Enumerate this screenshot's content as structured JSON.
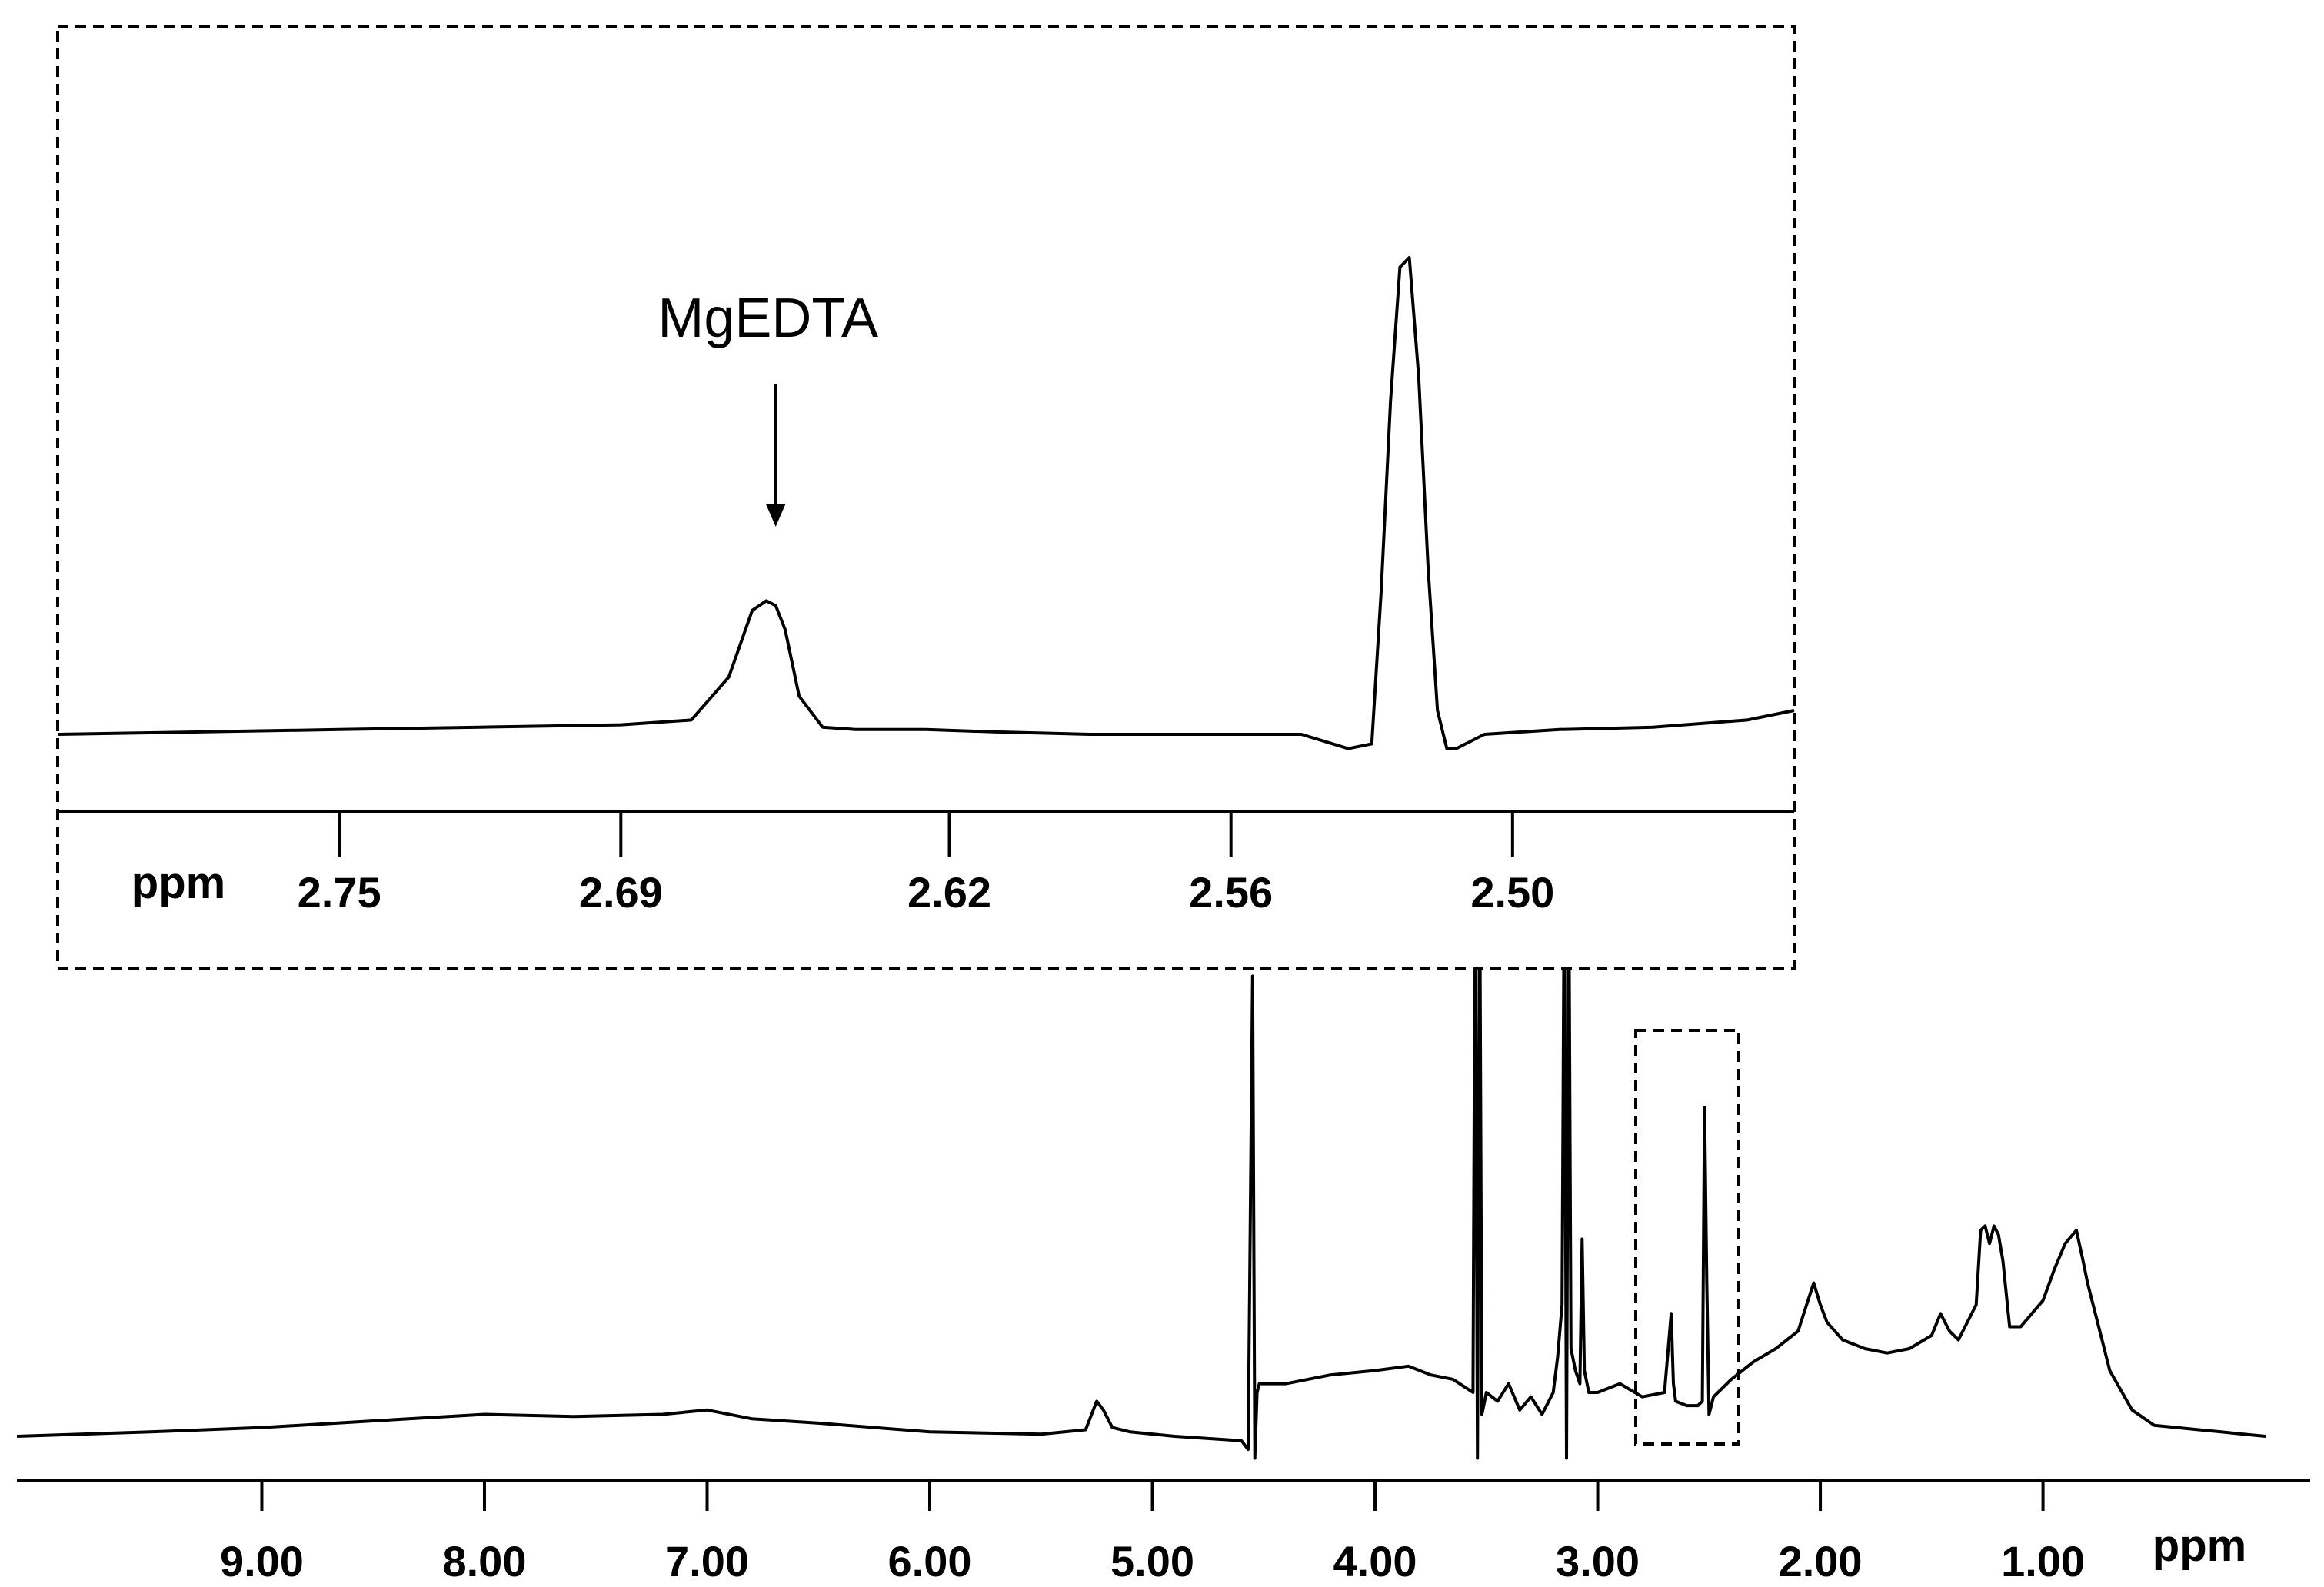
{
  "chart_data": [
    {
      "type": "line",
      "panel": "main-spectrum",
      "title": "",
      "xlabel": "ppm",
      "ylabel": "",
      "x_reversed": true,
      "xlim": [
        10.1,
        -0.2
      ],
      "x_ticks": [
        9.0,
        8.0,
        7.0,
        6.0,
        5.0,
        4.0,
        3.0,
        2.0,
        1.0
      ],
      "x_tick_labels": [
        "9.00",
        "8.00",
        "7.00",
        "6.00",
        "5.00",
        "4.00",
        "3.00",
        "2.00",
        "1.00"
      ],
      "grid": false,
      "legend": "none",
      "series": [
        {
          "color": "#000000",
          "x": [
            10.1,
            9.5,
            9.0,
            8.5,
            8.0,
            7.6,
            7.2,
            7.0,
            6.8,
            6.5,
            6.0,
            5.5,
            5.3,
            5.25,
            5.22,
            5.18,
            5.1,
            4.9,
            4.6,
            4.57,
            4.55,
            4.54,
            4.53,
            4.52,
            4.5,
            4.4,
            4.2,
            4.0,
            3.85,
            3.75,
            3.65,
            3.56,
            3.55,
            3.54,
            3.53,
            3.52,
            3.5,
            3.45,
            3.4,
            3.35,
            3.3,
            3.25,
            3.2,
            3.18,
            3.16,
            3.15,
            3.14,
            3.13,
            3.12,
            3.1,
            3.08,
            3.07,
            3.06,
            3.04,
            3.0,
            2.9,
            2.8,
            2.7,
            2.67,
            2.66,
            2.65,
            2.6,
            2.55,
            2.53,
            2.52,
            2.51,
            2.5,
            2.48,
            2.4,
            2.3,
            2.2,
            2.1,
            2.03,
            2.0,
            1.97,
            1.9,
            1.8,
            1.7,
            1.6,
            1.5,
            1.46,
            1.42,
            1.38,
            1.3,
            1.28,
            1.26,
            1.24,
            1.22,
            1.2,
            1.18,
            1.15,
            1.1,
            1.0,
            0.95,
            0.9,
            0.85,
            0.82,
            0.8,
            0.75,
            0.7,
            0.6,
            0.5,
            0.4,
            0.3,
            0.2,
            0.1,
            0.0
          ],
          "y": [
            0.0,
            0.01,
            0.02,
            0.035,
            0.05,
            0.045,
            0.05,
            0.06,
            0.04,
            0.03,
            0.01,
            0.005,
            0.015,
            0.08,
            0.06,
            0.02,
            0.01,
            0.0,
            -0.01,
            -0.03,
            1.05,
            -0.05,
            0.1,
            0.12,
            0.12,
            0.12,
            0.14,
            0.15,
            0.16,
            0.14,
            0.13,
            0.1,
            1.3,
            -0.05,
            1.3,
            0.05,
            0.1,
            0.08,
            0.12,
            0.06,
            0.09,
            0.05,
            0.1,
            0.18,
            0.3,
            1.3,
            -0.05,
            1.3,
            0.2,
            0.15,
            0.12,
            0.45,
            0.15,
            0.1,
            0.1,
            0.12,
            0.09,
            0.1,
            0.28,
            0.12,
            0.08,
            0.07,
            0.07,
            0.08,
            0.75,
            0.35,
            0.05,
            0.09,
            0.13,
            0.17,
            0.2,
            0.24,
            0.35,
            0.3,
            0.26,
            0.22,
            0.2,
            0.19,
            0.2,
            0.23,
            0.28,
            0.24,
            0.22,
            0.3,
            0.47,
            0.48,
            0.44,
            0.48,
            0.46,
            0.4,
            0.25,
            0.25,
            0.31,
            0.38,
            0.44,
            0.47,
            0.4,
            0.35,
            0.25,
            0.15,
            0.06,
            0.025,
            0.02,
            0.015,
            0.01,
            0.005,
            0.0
          ]
        }
      ]
    },
    {
      "type": "line",
      "panel": "inset-spectrum",
      "title": "",
      "xlabel": "ppm",
      "ylabel": "",
      "x_reversed": true,
      "xlim": [
        2.81,
        2.44
      ],
      "x_ticks": [
        2.75,
        2.69,
        2.62,
        2.56,
        2.5
      ],
      "x_tick_labels": [
        "2.75",
        "2.69",
        "2.62",
        "2.56",
        "2.50"
      ],
      "grid": false,
      "legend": "none",
      "annotations": [
        {
          "text": "MgEDTA",
          "x": 2.657
        }
      ],
      "series": [
        {
          "color": "#000000",
          "x": [
            2.81,
            2.78,
            2.75,
            2.72,
            2.69,
            2.675,
            2.667,
            2.662,
            2.659,
            2.657,
            2.655,
            2.652,
            2.647,
            2.64,
            2.625,
            2.61,
            2.59,
            2.57,
            2.56,
            2.545,
            2.535,
            2.53,
            2.528,
            2.526,
            2.524,
            2.522,
            2.52,
            2.518,
            2.516,
            2.514,
            2.512,
            2.506,
            2.49,
            2.47,
            2.45,
            2.44
          ],
          "y": [
            0.0,
            0.005,
            0.01,
            0.015,
            0.02,
            0.03,
            0.12,
            0.26,
            0.28,
            0.27,
            0.22,
            0.08,
            0.015,
            0.01,
            0.01,
            0.005,
            0.0,
            0.0,
            0.0,
            0.0,
            -0.03,
            -0.02,
            0.3,
            0.7,
            0.98,
            1.0,
            0.75,
            0.35,
            0.05,
            -0.03,
            -0.03,
            0.0,
            0.01,
            0.015,
            0.03,
            0.05
          ]
        }
      ]
    }
  ]
}
